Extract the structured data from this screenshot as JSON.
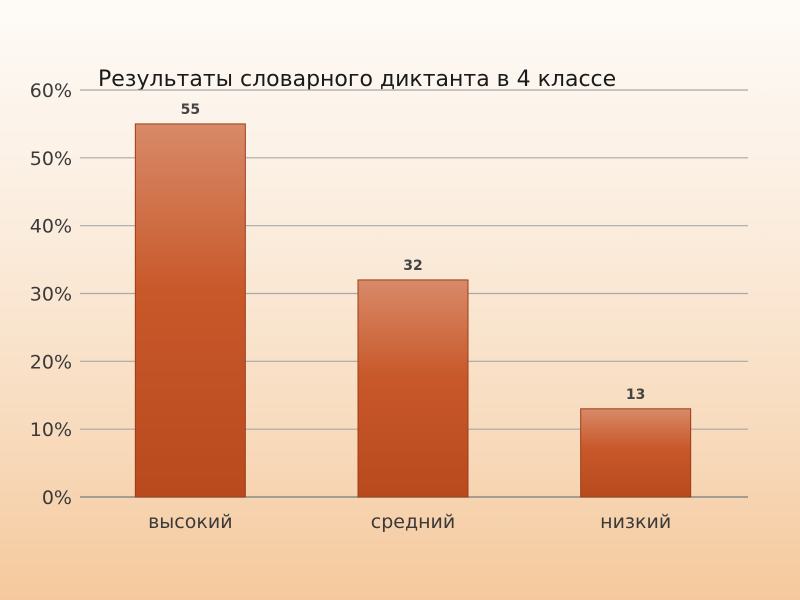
{
  "chart_data": {
    "type": "bar",
    "title": "Результаты словарного диктанта в 4 классе",
    "categories": [
      "высокий",
      "средний",
      "низкий"
    ],
    "values": [
      55,
      32,
      13
    ],
    "data_labels": [
      "55",
      "32",
      "13"
    ],
    "y_ticks": [
      "0%",
      "10%",
      "20%",
      "30%",
      "40%",
      "50%",
      "60%"
    ],
    "ylim": [
      0,
      60
    ],
    "xlabel": "",
    "ylabel": "",
    "grid": true,
    "legend": "none",
    "bar_color_top": "#d88a68",
    "bar_color_bottom": "#b84a1e",
    "bar_edge_color": "#9c3d18"
  }
}
